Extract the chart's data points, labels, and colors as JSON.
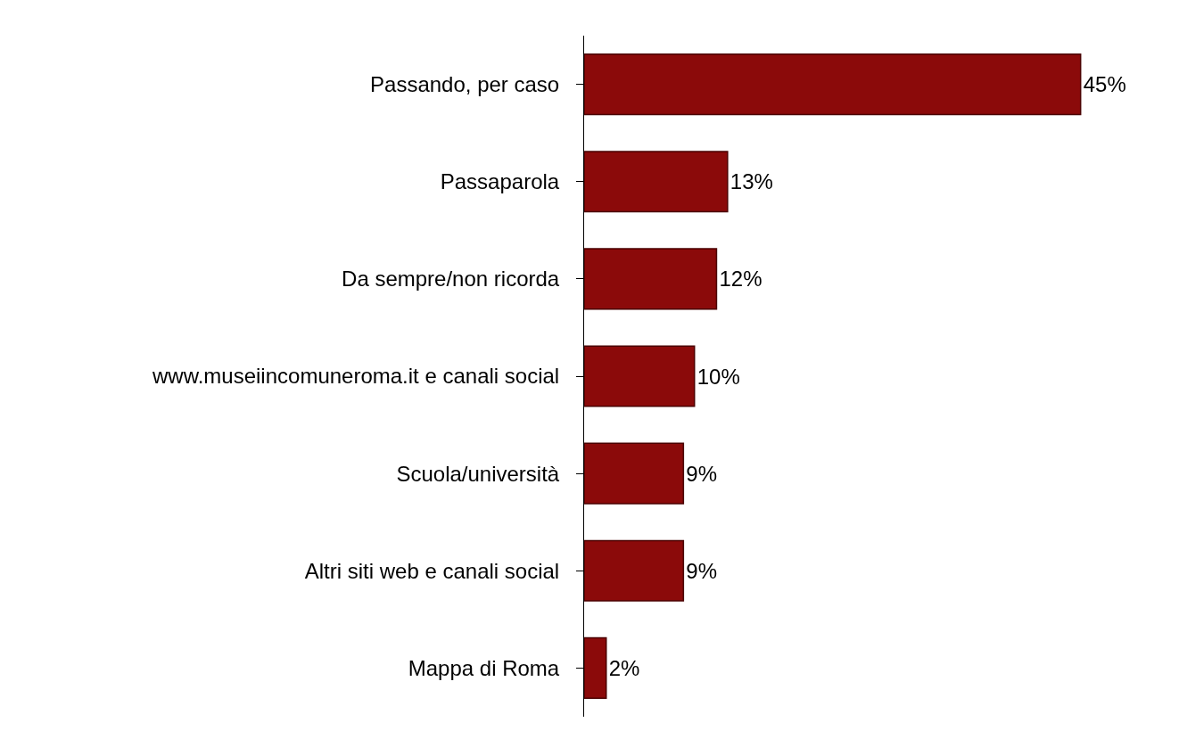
{
  "chart_data": {
    "type": "bar",
    "orientation": "horizontal",
    "categories": [
      "Passando, per caso",
      "Passaparola",
      "Da sempre/non ricorda",
      "www.museiincomuneroma.it e canali social",
      "Scuola/università",
      "Altri siti web e canali social",
      "Mappa di Roma"
    ],
    "values": [
      45,
      13,
      12,
      10,
      9,
      9,
      2
    ],
    "value_labels": [
      "45%",
      "13%",
      "12%",
      "10%",
      "9%",
      "9%",
      "2%"
    ],
    "color": "#8b0a0a",
    "tick_labels": "y",
    "legend": false
  }
}
